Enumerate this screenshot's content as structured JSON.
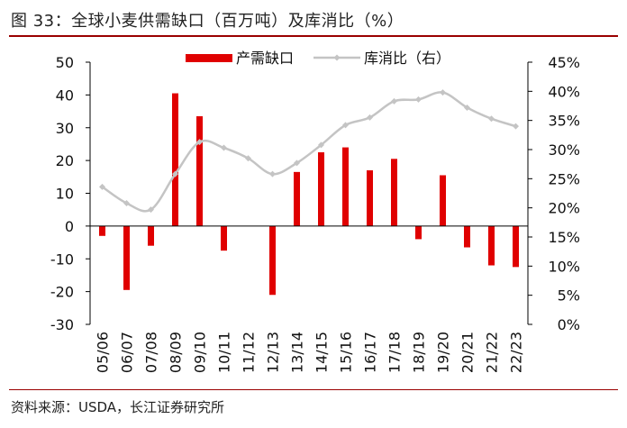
{
  "figure": {
    "title": "图 33：全球小麦供需缺口（百万吨）及库消比（%）",
    "source": "资料来源：USDA，长江证券研究所"
  },
  "colors": {
    "bar": "#e00000",
    "line": "#c4c4c4",
    "axis": "#000000",
    "rule": "#9a0000"
  },
  "chart_data": {
    "type": "bar+line",
    "title": "全球小麦供需缺口（百万吨）及库消比（%）",
    "categories": [
      "05/06",
      "06/07",
      "07/08",
      "08/09",
      "09/10",
      "10/11",
      "11/12",
      "12/13",
      "13/14",
      "14/15",
      "15/16",
      "16/17",
      "17/18",
      "18/19",
      "19/20",
      "20/21",
      "21/22",
      "22/23"
    ],
    "series": [
      {
        "name": "产需缺口",
        "type": "bar",
        "axis": "left",
        "values": [
          -3,
          -19.5,
          -6,
          40.5,
          33.5,
          -7.5,
          0,
          -21,
          16.5,
          22.5,
          24,
          17,
          20.5,
          -4,
          15.5,
          -6.5,
          -12,
          -12.5
        ]
      },
      {
        "name": "库消比（右）",
        "type": "line",
        "axis": "right",
        "values": [
          23.6,
          20.8,
          19.7,
          25.8,
          31.3,
          30.3,
          28.5,
          25.8,
          27.7,
          30.8,
          34.2,
          35.5,
          38.3,
          38.6,
          39.8,
          37.2,
          35.3,
          34.0
        ]
      }
    ],
    "left_axis": {
      "min": -30,
      "max": 50,
      "step": 10,
      "tick_labels": [
        "-30",
        "-20",
        "-10",
        "0",
        "10",
        "20",
        "30",
        "40",
        "50"
      ]
    },
    "right_axis": {
      "min": 0,
      "max": 45,
      "step": 5,
      "tick_labels": [
        "0%",
        "5%",
        "10%",
        "15%",
        "20%",
        "25%",
        "30%",
        "35%",
        "40%",
        "45%"
      ]
    },
    "legend": {
      "position": "top-center",
      "entries": [
        "产需缺口",
        "库消比（右）"
      ]
    }
  }
}
